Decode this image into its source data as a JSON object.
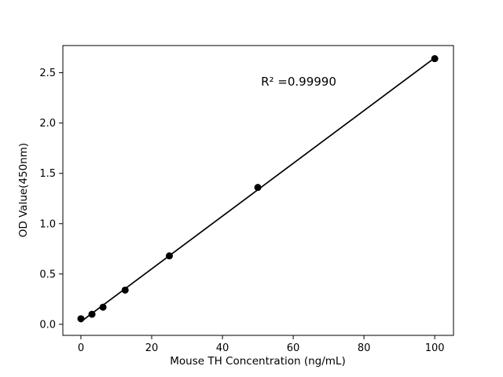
{
  "chart_data": {
    "type": "scatter",
    "title": "",
    "xlabel": "Mouse TH Concentration (ng/mL)",
    "ylabel": "OD Value(450nm)",
    "annotation": "R² =0.99990",
    "x": [
      0,
      3.125,
      6.25,
      12.5,
      25,
      50,
      100
    ],
    "y": [
      0.055,
      0.1,
      0.17,
      0.34,
      0.68,
      1.36,
      2.64
    ],
    "trendline": true,
    "xticks": [
      0,
      20,
      40,
      60,
      80,
      100
    ],
    "xtick_labels": [
      "0",
      "20",
      "40",
      "60",
      "80",
      "100"
    ],
    "yticks": [
      0.0,
      0.5,
      1.0,
      1.5,
      2.0,
      2.5
    ],
    "ytick_labels": [
      "0.0",
      "0.5",
      "1.0",
      "1.5",
      "2.0",
      "2.5"
    ],
    "xlim": [
      -5.1,
      105.3
    ],
    "ylim": [
      -0.11,
      2.77
    ],
    "grid": false,
    "legend": null,
    "marker_color": "#000000",
    "line_color": "#000000",
    "axis_color": "#000000",
    "background": "#ffffff"
  }
}
